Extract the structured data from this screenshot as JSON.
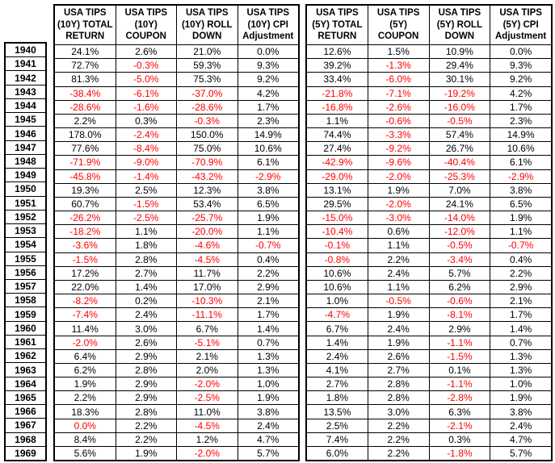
{
  "chart_data": {
    "type": "table",
    "description": "Annual USA TIPS (10Y and 5Y) return decomposition by year, 1940-1969",
    "colors": {
      "negative_value": "#FF0000",
      "text": "#000000",
      "border": "#000000",
      "background": "#FFFFFF"
    },
    "year_column": [
      "1940",
      "1941",
      "1942",
      "1943",
      "1944",
      "1945",
      "1946",
      "1947",
      "1948",
      "1949",
      "1950",
      "1951",
      "1952",
      "1953",
      "1954",
      "1955",
      "1956",
      "1957",
      "1958",
      "1959",
      "1960",
      "1961",
      "1962",
      "1963",
      "1964",
      "1965",
      "1966",
      "1967",
      "1968",
      "1969"
    ],
    "tables": [
      {
        "id": "usa-tips-10y",
        "headers": [
          "USA TIPS\n(10Y) TOTAL\nRETURN",
          "USA TIPS\n(10Y)\nCOUPON",
          "USA TIPS\n(10Y) ROLL\nDOWN",
          "USA TIPS\n(10Y) CPI\nAdjustment"
        ],
        "rows": [
          [
            "24.1%",
            "2.6%",
            "21.0%",
            "0.0%"
          ],
          [
            "72.7%",
            "-0.3%",
            "59.3%",
            "9.3%"
          ],
          [
            "81.3%",
            "-5.0%",
            "75.3%",
            "9.2%"
          ],
          [
            "-38.4%",
            "-6.1%",
            "-37.0%",
            "4.2%"
          ],
          [
            "-28.6%",
            "-1.6%",
            "-28.6%",
            "1.7%"
          ],
          [
            "2.2%",
            "0.3%",
            "-0.3%",
            "2.3%"
          ],
          [
            "178.0%",
            "-2.4%",
            "150.0%",
            "14.9%"
          ],
          [
            "77.6%",
            "-8.4%",
            "75.0%",
            "10.6%"
          ],
          [
            "-71.9%",
            "-9.0%",
            "-70.9%",
            "6.1%"
          ],
          [
            "-45.8%",
            "-1.4%",
            "-43.2%",
            "-2.9%"
          ],
          [
            "19.3%",
            "2.5%",
            "12.3%",
            "3.8%"
          ],
          [
            "60.7%",
            "-1.5%",
            "53.4%",
            "6.5%"
          ],
          [
            "-26.2%",
            "-2.5%",
            "-25.7%",
            "1.9%"
          ],
          [
            "-18.2%",
            "1.1%",
            "-20.0%",
            "1.1%"
          ],
          [
            "-3.6%",
            "1.8%",
            "-4.6%",
            "-0.7%"
          ],
          [
            "-1.5%",
            "2.8%",
            "-4.5%",
            "0.4%"
          ],
          [
            "17.2%",
            "2.7%",
            "11.7%",
            "2.2%"
          ],
          [
            "22.0%",
            "1.4%",
            "17.0%",
            "2.9%"
          ],
          [
            "-8.2%",
            "0.2%",
            "-10.3%",
            "2.1%"
          ],
          [
            "-7.4%",
            "2.4%",
            "-11.1%",
            "1.7%"
          ],
          [
            "11.4%",
            "3.0%",
            "6.7%",
            "1.4%"
          ],
          [
            "-2.0%",
            "2.6%",
            "-5.1%",
            "0.7%"
          ],
          [
            "6.4%",
            "2.9%",
            "2.1%",
            "1.3%"
          ],
          [
            "6.2%",
            "2.8%",
            "2.0%",
            "1.3%"
          ],
          [
            "1.9%",
            "2.9%",
            "-2.0%",
            "1.0%"
          ],
          [
            "2.2%",
            "2.9%",
            "-2.5%",
            "1.9%"
          ],
          [
            "18.3%",
            "2.8%",
            "11.0%",
            "3.8%"
          ],
          [
            "0.0%",
            "2.2%",
            "-4.5%",
            "2.4%"
          ],
          [
            "8.4%",
            "2.2%",
            "1.2%",
            "4.7%"
          ],
          [
            "5.6%",
            "1.9%",
            "-2.0%",
            "5.7%"
          ]
        ]
      },
      {
        "id": "usa-tips-5y",
        "headers": [
          "USA TIPS\n(5Y) TOTAL\nRETURN",
          "USA TIPS\n(5Y)\nCOUPON",
          "USA TIPS\n(5Y) ROLL\nDOWN",
          "USA TIPS\n(5Y) CPI\nAdjustment"
        ],
        "rows": [
          [
            "12.6%",
            "1.5%",
            "10.9%",
            "0.0%"
          ],
          [
            "39.2%",
            "-1.3%",
            "29.4%",
            "9.3%"
          ],
          [
            "33.4%",
            "-6.0%",
            "30.1%",
            "9.2%"
          ],
          [
            "-21.8%",
            "-7.1%",
            "-19.2%",
            "4.2%"
          ],
          [
            "-16.8%",
            "-2.6%",
            "-16.0%",
            "1.7%"
          ],
          [
            "1.1%",
            "-0.6%",
            "-0.5%",
            "2.3%"
          ],
          [
            "74.4%",
            "-3.3%",
            "57.4%",
            "14.9%"
          ],
          [
            "27.4%",
            "-9.2%",
            "26.7%",
            "10.6%"
          ],
          [
            "-42.9%",
            "-9.6%",
            "-40.4%",
            "6.1%"
          ],
          [
            "-29.0%",
            "-2.0%",
            "-25.3%",
            "-2.9%"
          ],
          [
            "13.1%",
            "1.9%",
            "7.0%",
            "3.8%"
          ],
          [
            "29.5%",
            "-2.0%",
            "24.1%",
            "6.5%"
          ],
          [
            "-15.0%",
            "-3.0%",
            "-14.0%",
            "1.9%"
          ],
          [
            "-10.4%",
            "0.6%",
            "-12.0%",
            "1.1%"
          ],
          [
            "-0.1%",
            "1.1%",
            "-0.5%",
            "-0.7%"
          ],
          [
            "-0.8%",
            "2.2%",
            "-3.4%",
            "0.4%"
          ],
          [
            "10.6%",
            "2.4%",
            "5.7%",
            "2.2%"
          ],
          [
            "10.6%",
            "1.1%",
            "6.2%",
            "2.9%"
          ],
          [
            "1.0%",
            "-0.5%",
            "-0.6%",
            "2.1%"
          ],
          [
            "-4.7%",
            "1.9%",
            "-8.1%",
            "1.7%"
          ],
          [
            "6.7%",
            "2.4%",
            "2.9%",
            "1.4%"
          ],
          [
            "1.4%",
            "1.9%",
            "-1.1%",
            "0.7%"
          ],
          [
            "2.4%",
            "2.6%",
            "-1.5%",
            "1.3%"
          ],
          [
            "4.1%",
            "2.7%",
            "0.1%",
            "1.3%"
          ],
          [
            "2.7%",
            "2.8%",
            "-1.1%",
            "1.0%"
          ],
          [
            "1.8%",
            "2.8%",
            "-2.8%",
            "1.9%"
          ],
          [
            "13.5%",
            "3.0%",
            "6.3%",
            "3.8%"
          ],
          [
            "2.5%",
            "2.2%",
            "-2.1%",
            "2.4%"
          ],
          [
            "7.4%",
            "2.2%",
            "0.3%",
            "4.7%"
          ],
          [
            "6.0%",
            "2.2%",
            "-1.8%",
            "5.7%"
          ]
        ]
      }
    ],
    "red_exception_cells": [
      {
        "table": 0,
        "row": 27,
        "col": 0
      }
    ]
  }
}
